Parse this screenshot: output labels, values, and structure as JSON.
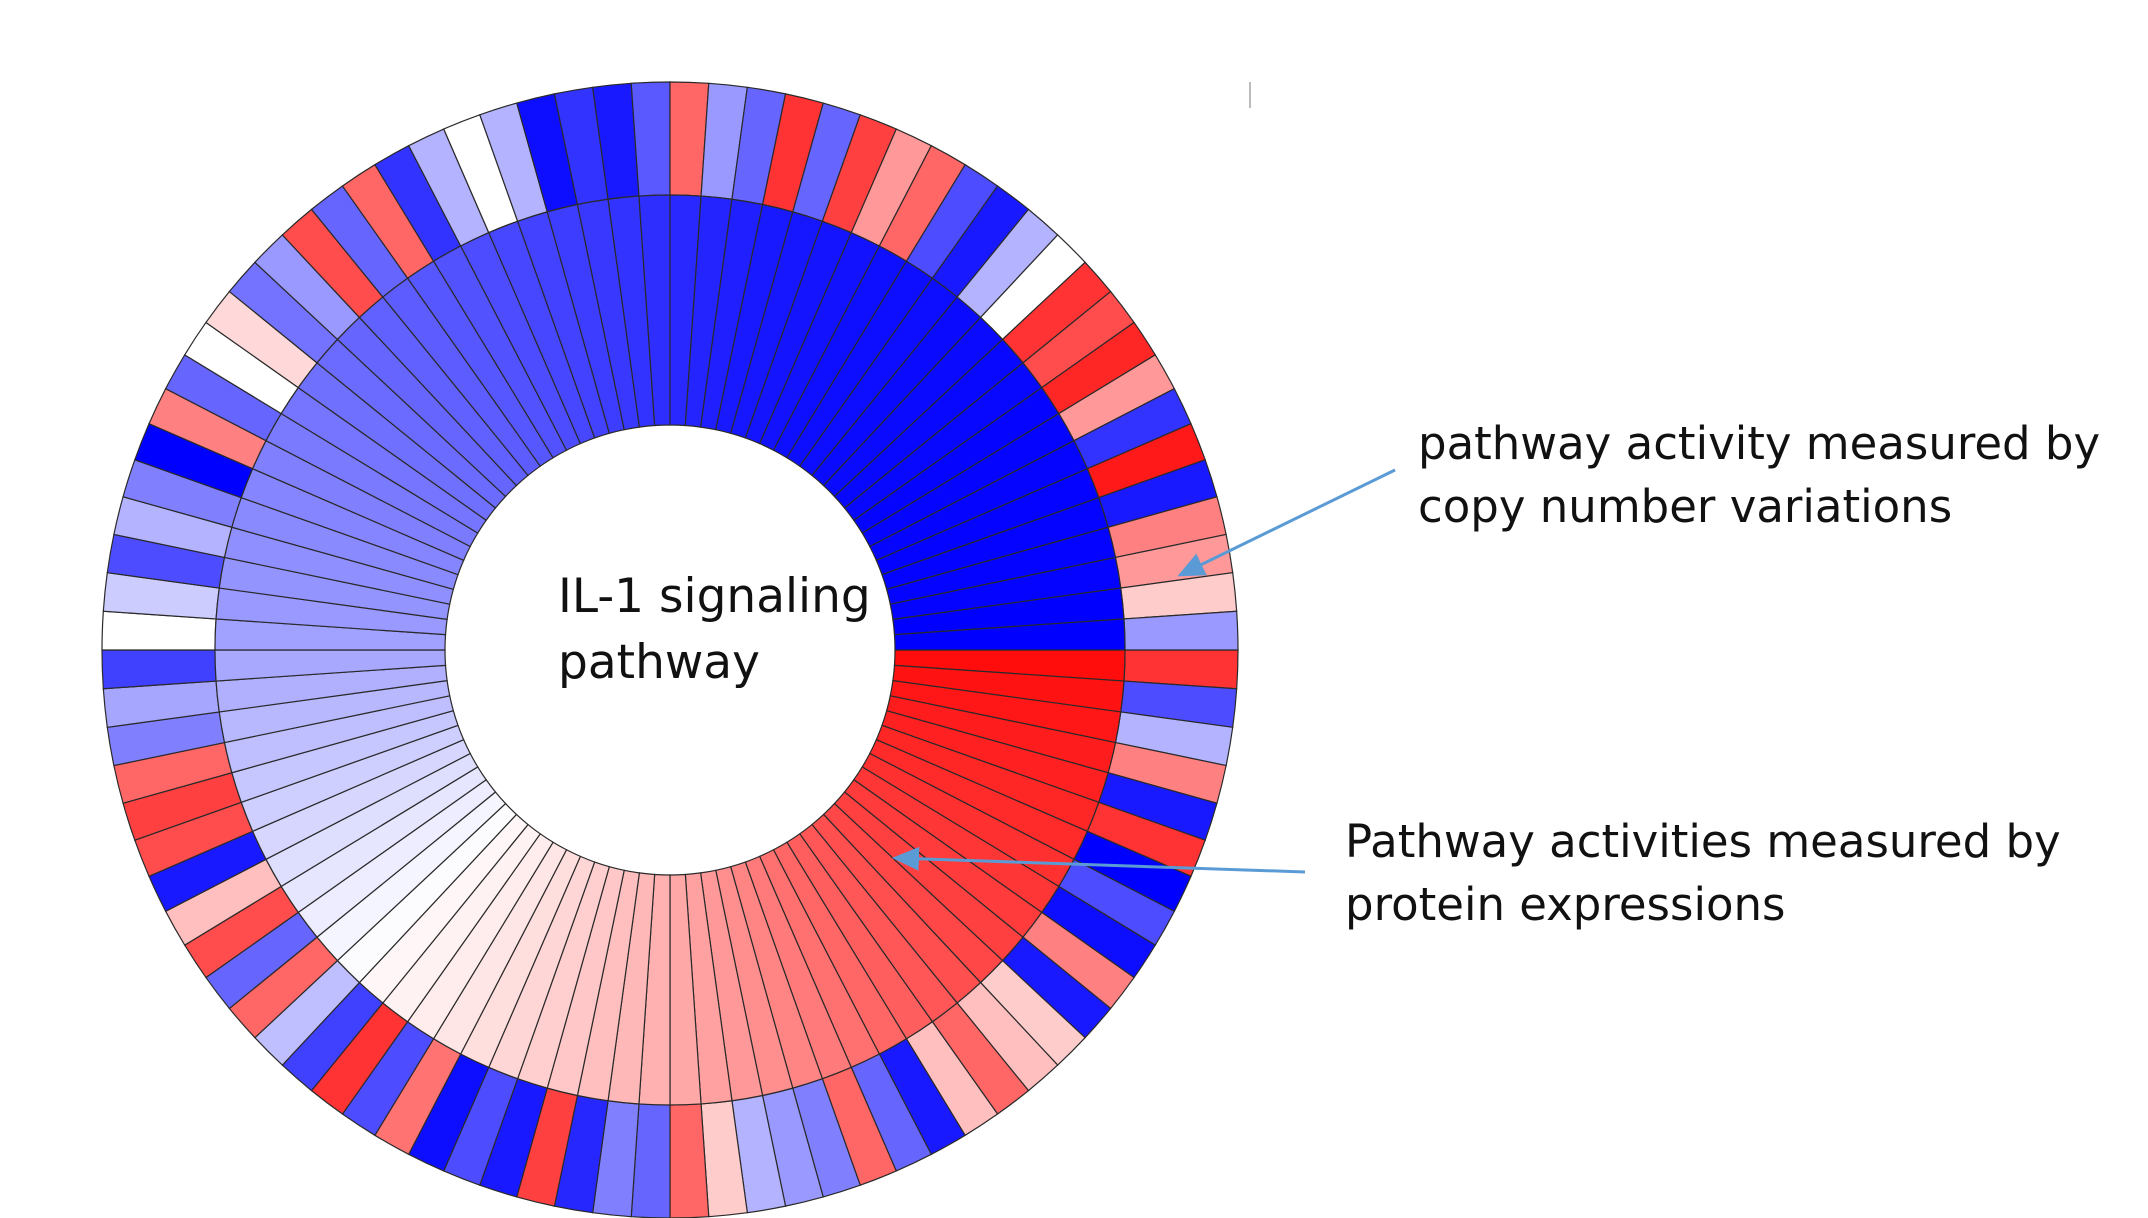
{
  "chart_data": {
    "type": "radial-heatmap",
    "center_label": [
      "IL-1 signaling",
      "pathway"
    ],
    "color_scale": {
      "negative": "#0000ff",
      "zero": "#ffffff",
      "positive": "#ff0000",
      "range": [
        -1,
        1
      ]
    },
    "rings": [
      {
        "annotation": [
          "pathway activity measured by",
          "copy number variations"
        ],
        "values": [
          0.8,
          -0.7,
          -0.3,
          0.5,
          -0.9,
          0.8,
          -1.0,
          -0.7,
          -0.95,
          0.5,
          -0.9,
          0.2,
          0.25,
          0.6,
          0.25,
          -0.9,
          -0.6,
          0.6,
          -0.5,
          -0.4,
          -0.3,
          0.2,
          0.6,
          -0.6,
          -0.5,
          -0.85,
          0.75,
          -0.9,
          -0.7,
          -0.95,
          0.55,
          -0.7,
          0.8,
          -0.75,
          -0.25,
          0.6,
          -0.6,
          0.7,
          0.25,
          -0.9,
          0.7,
          0.75,
          0.6,
          -0.5,
          -0.35,
          -0.75,
          0.0,
          -0.2,
          -0.7,
          -0.3,
          -0.5,
          -1.0,
          0.5,
          -0.6,
          0.0,
          0.15,
          -0.55,
          -0.4,
          0.7,
          -0.6,
          0.6,
          -0.8,
          -0.3,
          0.0,
          -0.3,
          -0.95,
          -0.8,
          -0.9,
          -0.65,
          0.6,
          -0.4,
          -0.6,
          0.8,
          -0.6,
          0.75,
          0.4,
          0.6,
          -0.7,
          -0.9,
          -0.3,
          0.0,
          0.8,
          0.7,
          0.85,
          0.4,
          -0.8,
          0.9,
          -0.9,
          0.5,
          0.4,
          0.2,
          -0.4
        ]
      },
      {
        "annotation": [
          "Pathway activities measured by",
          "protein expressions"
        ],
        "values": [
          0.95,
          0.93,
          0.91,
          0.89,
          0.87,
          0.85,
          0.83,
          0.81,
          0.79,
          0.77,
          0.75,
          0.72,
          0.69,
          0.66,
          0.63,
          0.6,
          0.56,
          0.52,
          0.48,
          0.44,
          0.4,
          0.37,
          0.34,
          0.31,
          0.28,
          0.25,
          0.22,
          0.19,
          0.16,
          0.13,
          0.1,
          0.07,
          0.05,
          0.03,
          -0.01,
          -0.04,
          -0.07,
          -0.1,
          -0.13,
          -0.16,
          -0.19,
          -0.22,
          -0.25,
          -0.28,
          -0.31,
          -0.34,
          -0.37,
          -0.4,
          -0.42,
          -0.44,
          -0.46,
          -0.48,
          -0.5,
          -0.52,
          -0.54,
          -0.56,
          -0.58,
          -0.6,
          -0.62,
          -0.64,
          -0.66,
          -0.68,
          -0.7,
          -0.72,
          -0.74,
          -0.76,
          -0.78,
          -0.8,
          -0.82,
          -0.84,
          -0.86,
          -0.88,
          -0.9,
          -0.91,
          -0.92,
          -0.93,
          -0.94,
          -0.95,
          -0.95,
          -0.96,
          -0.96,
          -0.97,
          -0.97,
          -0.98,
          -0.98,
          -0.98,
          -0.99,
          -0.99,
          -0.99,
          -0.99,
          -1.0,
          -1.0
        ]
      }
    ]
  },
  "colors": {
    "arrow": "#5b9bd5",
    "cell_stroke": "#2a2a2a",
    "text": "#111111"
  }
}
